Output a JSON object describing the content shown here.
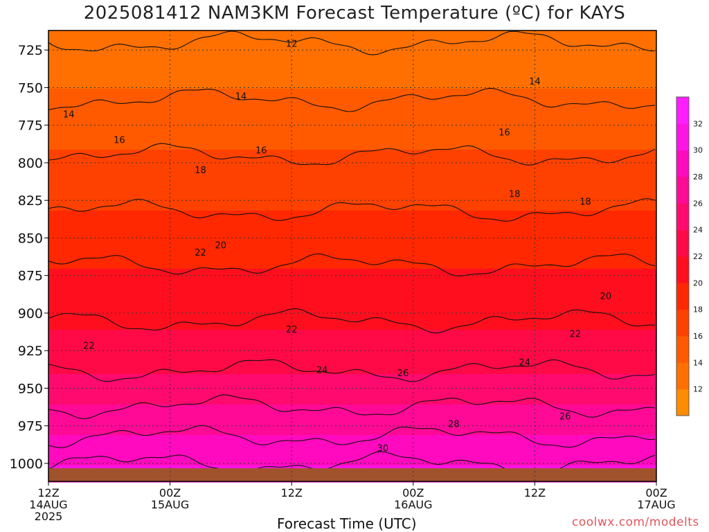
{
  "title": "2025081412 NAM3KM Forecast Temperature (ºC) for KAYS",
  "x_axis_label": "Forecast Time (UTC)",
  "credit": "coolwx.com/modelts",
  "chart_data": {
    "type": "heatmap",
    "title": "2025081412 NAM3KM Forecast Temperature (ºC) for KAYS",
    "xlabel": "Forecast Time (UTC)",
    "ylabel": "",
    "x_ticks": [
      {
        "hour": 0,
        "lines": [
          "12Z",
          "14AUG",
          "2025"
        ]
      },
      {
        "hour": 12,
        "lines": [
          "00Z",
          "15AUG"
        ]
      },
      {
        "hour": 24,
        "lines": [
          "12Z"
        ]
      },
      {
        "hour": 36,
        "lines": [
          "00Z",
          "16AUG"
        ]
      },
      {
        "hour": 48,
        "lines": [
          "12Z"
        ]
      },
      {
        "hour": 60,
        "lines": [
          "00Z",
          "17AUG"
        ]
      }
    ],
    "xlim": [
      0,
      60
    ],
    "y_ticks": [
      725,
      750,
      775,
      800,
      825,
      850,
      875,
      900,
      925,
      950,
      975,
      1000
    ],
    "ylim": [
      1012,
      712
    ],
    "grid": true,
    "colorbar": {
      "ticks": [
        12,
        14,
        16,
        18,
        20,
        22,
        24,
        26,
        28,
        30,
        32
      ],
      "colors": [
        "#ff8c00",
        "#ff7000",
        "#ff5a00",
        "#ff4100",
        "#ff2800",
        "#ff0f1e",
        "#ff0a46",
        "#ff0a6e",
        "#ff0a96",
        "#ff0abe",
        "#ff14e6",
        "#ff1eff"
      ]
    },
    "contour_labels": [
      {
        "value": "12",
        "hour": 24.0,
        "p": 721
      },
      {
        "value": "14",
        "hour": 2.0,
        "p": 768
      },
      {
        "value": "14",
        "hour": 19.0,
        "p": 756
      },
      {
        "value": "14",
        "hour": 48.0,
        "p": 746
      },
      {
        "value": "16",
        "hour": 7.0,
        "p": 785
      },
      {
        "value": "16",
        "hour": 21.0,
        "p": 792
      },
      {
        "value": "16",
        "hour": 45.0,
        "p": 780
      },
      {
        "value": "18",
        "hour": 15.0,
        "p": 805
      },
      {
        "value": "18",
        "hour": 46.0,
        "p": 821
      },
      {
        "value": "18",
        "hour": 53.0,
        "p": 826
      },
      {
        "value": "20",
        "hour": 17.0,
        "p": 855
      },
      {
        "value": "20",
        "hour": 55.0,
        "p": 889
      },
      {
        "value": "22",
        "hour": 15.0,
        "p": 860
      },
      {
        "value": "22",
        "hour": 4.0,
        "p": 922
      },
      {
        "value": "22",
        "hour": 24.0,
        "p": 911
      },
      {
        "value": "22",
        "hour": 52.0,
        "p": 914
      },
      {
        "value": "24",
        "hour": 27.0,
        "p": 938
      },
      {
        "value": "24",
        "hour": 47.0,
        "p": 933
      },
      {
        "value": "26",
        "hour": 35.0,
        "p": 940
      },
      {
        "value": "26",
        "hour": 51.0,
        "p": 969
      },
      {
        "value": "28",
        "hour": 40.0,
        "p": 974
      },
      {
        "value": "30",
        "hour": 33.0,
        "p": 990
      }
    ],
    "levels_sample": [
      {
        "p": 712,
        "temp": 12
      },
      {
        "p": 750,
        "temp": 14
      },
      {
        "p": 790,
        "temp": 16
      },
      {
        "p": 830,
        "temp": 18
      },
      {
        "p": 870,
        "temp": 20
      },
      {
        "p": 910,
        "temp": 22
      },
      {
        "p": 940,
        "temp": 24
      },
      {
        "p": 960,
        "temp": 26
      },
      {
        "p": 980,
        "temp": 28
      },
      {
        "p": 1000,
        "temp": 30
      }
    ]
  }
}
